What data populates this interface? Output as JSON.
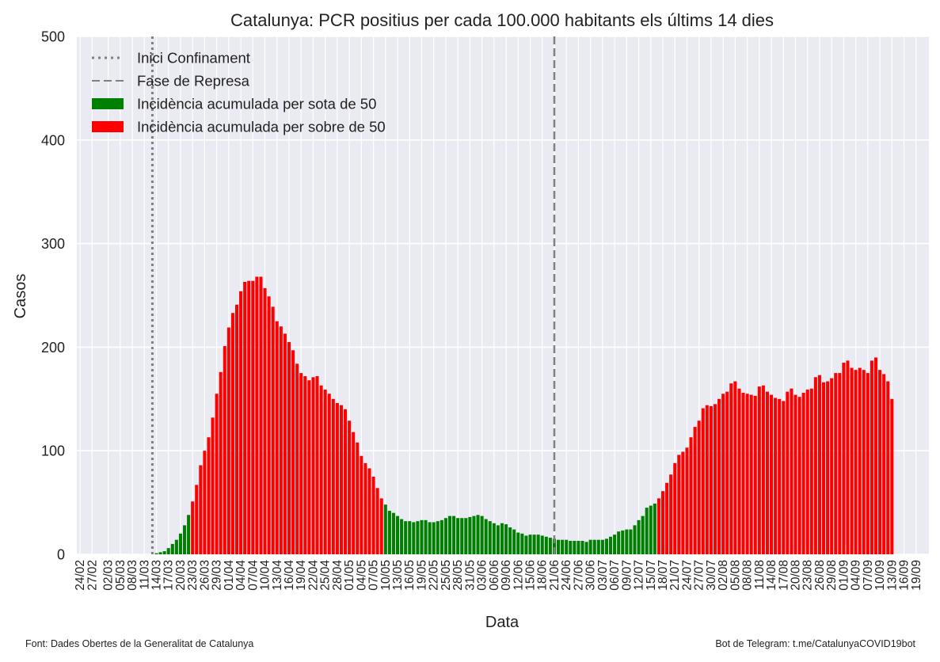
{
  "chart_data": {
    "type": "bar",
    "title": "Catalunya: PCR positius per cada 100.000 habitants els últims 14 dies",
    "xlabel": "Data",
    "ylabel": "Casos",
    "ylim": [
      0,
      500
    ],
    "yticks": [
      0,
      100,
      200,
      300,
      400,
      500
    ],
    "grid": true,
    "legend_position": "top-left",
    "start_date": "24/02",
    "xtick_labels": [
      "24/02",
      "27/02",
      "02/03",
      "05/03",
      "08/03",
      "11/03",
      "14/03",
      "17/03",
      "20/03",
      "23/03",
      "26/03",
      "29/03",
      "01/04",
      "04/04",
      "07/04",
      "10/04",
      "13/04",
      "16/04",
      "19/04",
      "22/04",
      "25/04",
      "28/04",
      "01/05",
      "04/05",
      "07/05",
      "10/05",
      "13/05",
      "16/05",
      "19/05",
      "22/05",
      "25/05",
      "28/05",
      "31/05",
      "03/06",
      "06/06",
      "09/06",
      "12/06",
      "15/06",
      "18/06",
      "21/06",
      "24/06",
      "27/06",
      "30/06",
      "03/07",
      "06/07",
      "09/07",
      "12/07",
      "15/07",
      "18/07",
      "21/07",
      "24/07",
      "27/07",
      "30/07",
      "02/08",
      "05/08",
      "08/08",
      "11/08",
      "14/08",
      "17/08",
      "20/08",
      "23/08",
      "26/08",
      "29/08",
      "01/09",
      "04/09",
      "07/09",
      "10/09",
      "13/09",
      "16/09",
      "19/09"
    ],
    "threshold": 50,
    "vlines": [
      {
        "label": "Inici Confinament",
        "date": "13/03",
        "style": "dotted"
      },
      {
        "label": "Fase de Represa",
        "date": "21/06",
        "style": "dashed"
      }
    ],
    "legend": [
      {
        "label": "Inici Confinament",
        "kind": "dotted-line",
        "color": "#808080"
      },
      {
        "label": "Fase de Represa",
        "kind": "dashed-line",
        "color": "#808080"
      },
      {
        "label": "Incidència acumulada per sota de 50",
        "kind": "patch",
        "color": "#008000"
      },
      {
        "label": "Incidència acumulada per sobre de 50",
        "kind": "patch",
        "color": "#ff0000"
      }
    ],
    "colors": {
      "below": "#008000",
      "above": "#ff0000",
      "background": "#eaeaf2",
      "grid": "#ffffff"
    },
    "values": [
      0,
      0,
      0,
      0,
      0,
      0,
      0,
      0,
      0,
      0,
      0,
      0,
      0,
      0,
      0,
      0,
      0,
      0,
      0,
      1,
      2,
      3,
      6,
      10,
      14,
      20,
      28,
      38,
      51,
      67,
      86,
      100,
      113,
      132,
      155,
      176,
      201,
      219,
      233,
      241,
      254,
      263,
      264,
      264,
      268,
      268,
      257,
      249,
      239,
      225,
      220,
      213,
      205,
      197,
      184,
      175,
      172,
      168,
      171,
      172,
      163,
      159,
      155,
      150,
      146,
      144,
      140,
      129,
      118,
      108,
      95,
      88,
      83,
      75,
      64,
      54,
      48,
      42,
      40,
      37,
      34,
      32,
      32,
      31,
      32,
      33,
      33,
      31,
      31,
      32,
      33,
      35,
      37,
      37,
      35,
      35,
      35,
      36,
      37,
      38,
      37,
      34,
      32,
      30,
      28,
      30,
      29,
      26,
      24,
      21,
      20,
      18,
      19,
      19,
      19,
      18,
      17,
      16,
      15,
      14,
      14,
      14,
      13,
      13,
      13,
      13,
      12,
      14,
      14,
      14,
      14,
      15,
      17,
      19,
      22,
      23,
      24,
      24,
      28,
      33,
      37,
      45,
      47,
      49,
      54,
      61,
      69,
      77,
      88,
      96,
      99,
      103,
      113,
      123,
      129,
      141,
      144,
      143,
      145,
      150,
      155,
      157,
      165,
      167,
      160,
      156,
      155,
      154,
      153,
      162,
      163,
      157,
      154,
      151,
      150,
      148,
      157,
      160,
      154,
      152,
      156,
      159,
      160,
      171,
      173,
      166,
      167,
      170,
      175,
      175,
      185,
      187,
      180,
      178,
      180,
      178,
      175,
      187,
      190,
      178,
      174,
      167,
      150
    ]
  },
  "footer": {
    "left": "Font: Dades Obertes de la Generalitat de Catalunya",
    "right": "Bot de Telegram: t.me/CatalunyaCOVID19bot"
  }
}
